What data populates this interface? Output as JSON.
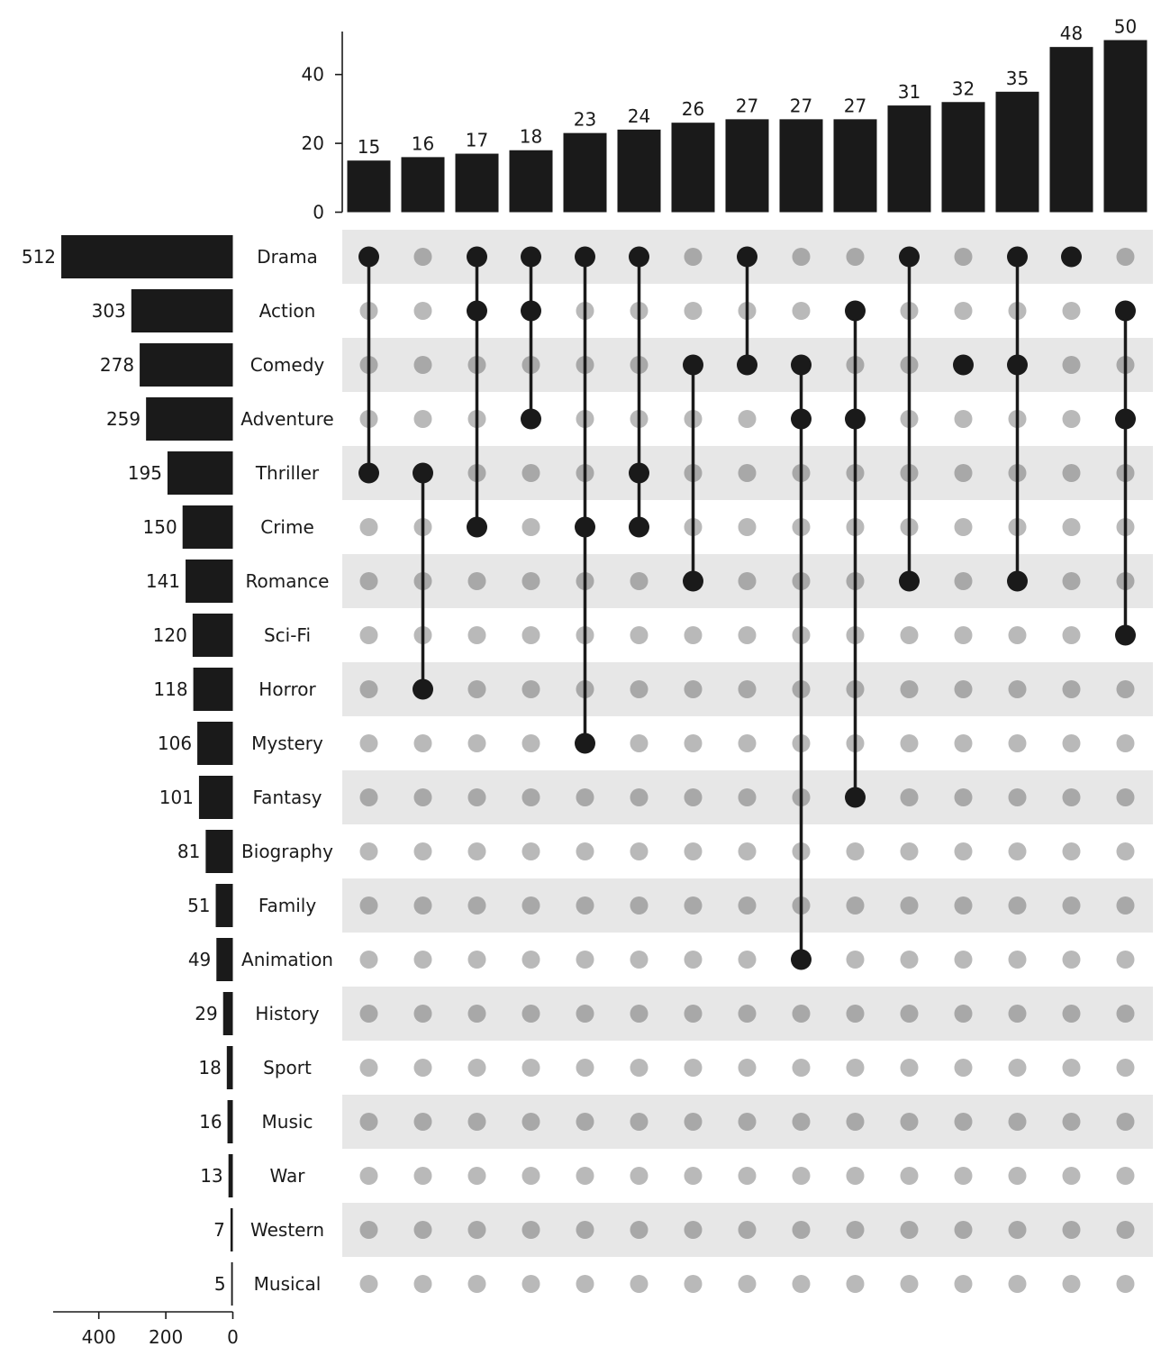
{
  "chart_data": {
    "type": "upset",
    "title": "",
    "sets": [
      "Drama",
      "Action",
      "Comedy",
      "Adventure",
      "Thriller",
      "Crime",
      "Romance",
      "Sci-Fi",
      "Horror",
      "Mystery",
      "Fantasy",
      "Biography",
      "Family",
      "Animation",
      "History",
      "Sport",
      "Music",
      "War",
      "Western",
      "Musical"
    ],
    "set_sizes": [
      512,
      303,
      278,
      259,
      195,
      150,
      141,
      120,
      118,
      106,
      101,
      81,
      51,
      49,
      29,
      18,
      16,
      13,
      7,
      5
    ],
    "intersections": [
      {
        "members": [
          "Drama",
          "Thriller"
        ],
        "size": 15
      },
      {
        "members": [
          "Thriller",
          "Horror"
        ],
        "size": 16
      },
      {
        "members": [
          "Drama",
          "Action",
          "Crime"
        ],
        "size": 17
      },
      {
        "members": [
          "Drama",
          "Action",
          "Adventure"
        ],
        "size": 18
      },
      {
        "members": [
          "Drama",
          "Crime",
          "Mystery"
        ],
        "size": 23
      },
      {
        "members": [
          "Drama",
          "Thriller",
          "Crime"
        ],
        "size": 24
      },
      {
        "members": [
          "Comedy",
          "Romance"
        ],
        "size": 26
      },
      {
        "members": [
          "Drama",
          "Comedy"
        ],
        "size": 27
      },
      {
        "members": [
          "Comedy",
          "Adventure",
          "Animation"
        ],
        "size": 27
      },
      {
        "members": [
          "Action",
          "Adventure",
          "Fantasy"
        ],
        "size": 27
      },
      {
        "members": [
          "Drama",
          "Romance"
        ],
        "size": 31
      },
      {
        "members": [
          "Comedy"
        ],
        "size": 32
      },
      {
        "members": [
          "Drama",
          "Comedy",
          "Romance"
        ],
        "size": 35
      },
      {
        "members": [
          "Drama"
        ],
        "size": 48
      },
      {
        "members": [
          "Action",
          "Adventure",
          "Sci-Fi"
        ],
        "size": 50
      }
    ],
    "intersection_axis": {
      "ylim": [
        0,
        52
      ],
      "ticks": [
        0,
        20,
        40
      ]
    },
    "set_size_axis": {
      "xlim": [
        0,
        540
      ],
      "ticks": [
        400,
        200,
        0
      ],
      "reversed": true
    },
    "colors": {
      "bar": "#1a1a1a",
      "dot_active": "#1a1a1a",
      "dot_inactive_light": "#b9b9b9",
      "dot_inactive_dark": "#a8a8a8",
      "row_shade": "#e7e7e7"
    }
  }
}
